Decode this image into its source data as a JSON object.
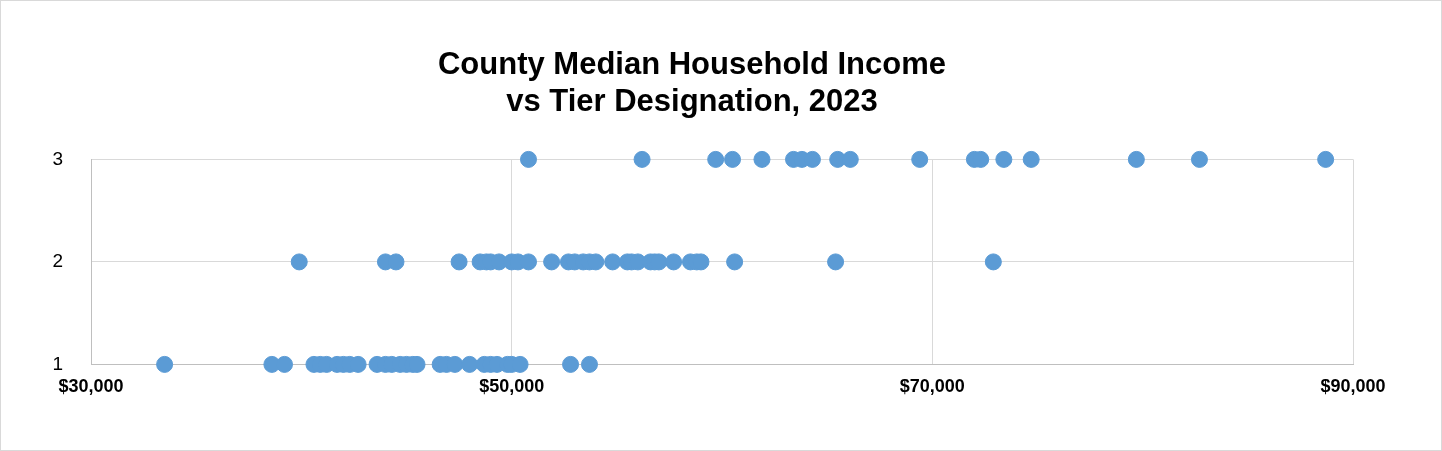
{
  "chart_data": {
    "type": "scatter",
    "title": "County Median Household Income\nvs Tier Designation, 2023",
    "series": [
      {
        "color": "#5b9bd5",
        "x": [
          50800,
          56200,
          59700,
          60500,
          61900,
          63400,
          63800,
          64300,
          65500,
          66100,
          69400,
          72000,
          72300,
          73400,
          74700,
          79700,
          82700,
          88700,
          39900,
          44000,
          44500,
          47500,
          48500,
          48800,
          49000,
          49400,
          50000,
          50300,
          50800,
          51900,
          52700,
          53000,
          53400,
          53700,
          54000,
          54800,
          55500,
          55700,
          56000,
          56600,
          56800,
          57000,
          57700,
          58500,
          58800,
          59000,
          60600,
          65400,
          72900,
          33500,
          38600,
          39200,
          40600,
          40900,
          41200,
          41700,
          42000,
          42300,
          42700,
          43600,
          44000,
          44300,
          44700,
          45000,
          45300,
          45500,
          46600,
          46900,
          47300,
          48000,
          48700,
          49000,
          49300,
          49800,
          50000,
          50400,
          52800,
          53700
        ],
        "values": [
          3,
          3,
          3,
          3,
          3,
          3,
          3,
          3,
          3,
          3,
          3,
          3,
          3,
          3,
          3,
          3,
          3,
          3,
          2,
          2,
          2,
          2,
          2,
          2,
          2,
          2,
          2,
          2,
          2,
          2,
          2,
          2,
          2,
          2,
          2,
          2,
          2,
          2,
          2,
          2,
          2,
          2,
          2,
          2,
          2,
          2,
          2,
          2,
          2,
          1,
          1,
          1,
          1,
          1,
          1,
          1,
          1,
          1,
          1,
          1,
          1,
          1,
          1,
          1,
          1,
          1,
          1,
          1,
          1,
          1,
          1,
          1,
          1,
          1,
          1,
          1,
          1,
          1
        ]
      }
    ],
    "xlim": [
      30000,
      90000
    ],
    "xticks": [
      {
        "value": 30000,
        "label": "$30,000"
      },
      {
        "value": 50000,
        "label": "$50,000"
      },
      {
        "value": 70000,
        "label": "$70,000"
      },
      {
        "value": 90000,
        "label": "$90,000"
      }
    ],
    "ylim": [
      1,
      3
    ],
    "yticks": [
      1,
      2,
      3
    ],
    "grid": true,
    "marker": "circle",
    "legend": false
  }
}
